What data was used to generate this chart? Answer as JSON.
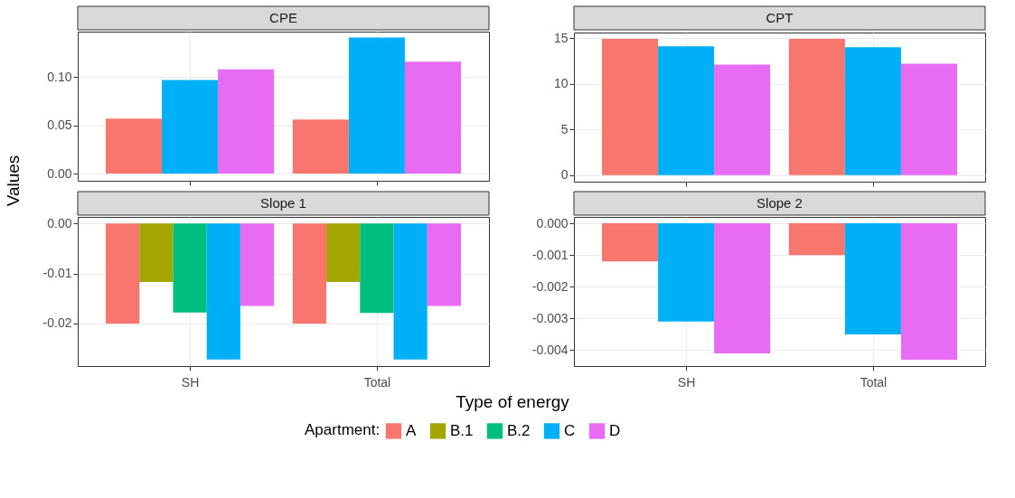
{
  "chart_data": [
    {
      "type": "bar",
      "title": "CPE",
      "ylabel": "Values",
      "xlabel": "Type of energy",
      "legend_title": "Apartment:",
      "legend": "bottom",
      "grid": true,
      "tick_labels": "y",
      "categories": [
        null,
        null
      ],
      "ylim": [
        -0.0074,
        0.147
      ],
      "yticks": [
        {
          "value": 0,
          "label": "0.00"
        },
        {
          "value": 0.05,
          "label": "0.05"
        },
        {
          "value": 0.1,
          "label": "0.10"
        }
      ],
      "series": [
        {
          "name": "A",
          "color": "#f8766d",
          "values": [
            0.057,
            0.056
          ]
        },
        {
          "name": "B.1",
          "color": "#a3a500",
          "values": [
            null,
            null
          ]
        },
        {
          "name": "B.2",
          "color": "#00bf7d",
          "values": [
            null,
            null
          ]
        },
        {
          "name": "C",
          "color": "#00b0f6",
          "values": [
            0.097,
            0.141
          ]
        },
        {
          "name": "D",
          "color": "#e76bf3",
          "values": [
            0.108,
            0.116
          ]
        }
      ]
    },
    {
      "type": "bar",
      "title": "CPT",
      "grid": true,
      "tick_labels": "y",
      "categories": [
        null,
        null
      ],
      "ylim": [
        -0.72,
        15.6
      ],
      "yticks": [
        0,
        5,
        10,
        15
      ],
      "series": [
        {
          "color": "#f8766d",
          "values": [
            14.9,
            14.9
          ]
        },
        {
          "color": "#00b0f6",
          "values": [
            14.1,
            14.0
          ]
        },
        {
          "color": "#e76bf3",
          "values": [
            12.1,
            12.2
          ]
        }
      ]
    },
    {
      "type": "bar",
      "title": "Slope 1",
      "grid": true,
      "categories": [
        "SH",
        "Total"
      ],
      "ylim": [
        -0.0285,
        0.0013
      ],
      "yticks": [
        {
          "value": 0,
          "label": "0.00"
        },
        {
          "value": -0.01,
          "label": "-0.01"
        },
        {
          "value": -0.02,
          "label": "-0.02"
        }
      ],
      "series": [
        {
          "color": "#f8766d",
          "values": [
            -0.02,
            -0.02
          ]
        },
        {
          "color": "#a3a500",
          "values": [
            -0.0117,
            -0.0117
          ]
        },
        {
          "color": "#00bf7d",
          "values": [
            -0.0178,
            -0.0179
          ]
        },
        {
          "color": "#00b0f6",
          "values": [
            -0.0272,
            -0.0272
          ]
        },
        {
          "color": "#e76bf3",
          "values": [
            -0.0165,
            -0.0165
          ]
        }
      ]
    },
    {
      "type": "bar",
      "title": "Slope 2",
      "grid": true,
      "categories": [
        "SH",
        "Total"
      ],
      "ylim": [
        -0.0045,
        0.0002
      ],
      "yticks": [
        {
          "value": 0,
          "label": "0.000"
        },
        {
          "value": -0.001,
          "label": "-0.001"
        },
        {
          "value": -0.002,
          "label": "-0.002"
        },
        {
          "value": -0.003,
          "label": "-0.003"
        },
        {
          "value": -0.004,
          "label": "-0.004"
        }
      ],
      "series": [
        {
          "color": "#f8766d",
          "values": [
            -0.0012,
            -0.001
          ]
        },
        {
          "color": "#00b0f6",
          "values": [
            -0.0031,
            -0.0035
          ]
        },
        {
          "color": "#e76bf3",
          "values": [
            -0.0041,
            -0.0043
          ]
        }
      ]
    }
  ]
}
